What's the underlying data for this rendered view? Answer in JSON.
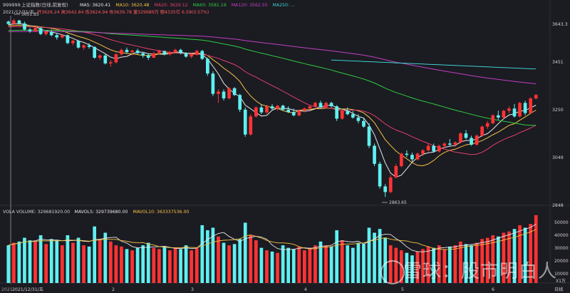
{
  "header": {
    "code": "999999",
    "name": "上证指数(日线,前复权)",
    "ma_items": [
      {
        "label": "MA5: 3620.41",
        "color": "#e8e8e8"
      },
      {
        "label": "MA10: 3620.48",
        "color": "#f5c242"
      },
      {
        "label": "MA20: 3629.12",
        "color": "#e0406a"
      },
      {
        "label": "MA60: 3581.19",
        "color": "#2ecc40"
      },
      {
        "label": "MA120: 3562.55",
        "color": "#c040c0"
      },
      {
        "label": "MA250: ...",
        "color": "#3ccfcf"
      }
    ],
    "info_date": "2021/12/31/五",
    "info_values": "开3626.24 高3642.84 低3624.94 收3639.78 量329689万 额4335亿 6.59(0.57%)"
  },
  "price_axis": {
    "labels": [
      "3643.3",
      "3451",
      "3250",
      "3049",
      "2848"
    ]
  },
  "annotations": {
    "high": "3651.85",
    "low": "2863.65"
  },
  "volume_header": {
    "items": [
      {
        "label": "VOLA VOLUME: 329681920.00",
        "color": "#cfcfcf"
      },
      {
        "label": "MAVOL5: 329739680.00",
        "color": "#e8e8e8"
      },
      {
        "label": "MAVOL10: 363337536.00",
        "color": "#f5c242"
      }
    ]
  },
  "volume_axis": {
    "labels": [
      "50000",
      "40000",
      "30000",
      "20000",
      "10000"
    ],
    "unit": "X1万"
  },
  "date_axis": {
    "labels": [
      "2021",
      "2021/12/31/五",
      "2",
      "3",
      "4",
      "5",
      "6",
      "日线"
    ]
  },
  "watermark": {
    "text": "雪球：股市明白人"
  },
  "colors": {
    "up": "#ff3333",
    "down": "#5ff0f0",
    "background": "#1b1b22",
    "ma5": "#e8e8e8",
    "ma10": "#f5c242",
    "ma20": "#e0406a",
    "ma60": "#2ecc40",
    "ma120": "#c040c0",
    "ma250": "#3ccfcf"
  },
  "chart_data": {
    "type": "candlestick",
    "price_range": [
      2820,
      3660
    ],
    "volume_range": [
      0,
      55000
    ],
    "candles": [
      [
        3640,
        3645,
        3625,
        3630,
        30000
      ],
      [
        3630,
        3651.85,
        3620,
        3645,
        32000
      ],
      [
        3645,
        3648,
        3628,
        3632,
        33000
      ],
      [
        3632,
        3640,
        3600,
        3605,
        36000
      ],
      [
        3605,
        3612,
        3590,
        3598,
        34000
      ],
      [
        3598,
        3618,
        3595,
        3612,
        33000
      ],
      [
        3612,
        3615,
        3580,
        3585,
        38000
      ],
      [
        3585,
        3600,
        3578,
        3595,
        31000
      ],
      [
        3595,
        3605,
        3575,
        3580,
        35000
      ],
      [
        3580,
        3590,
        3560,
        3570,
        34000
      ],
      [
        3570,
        3585,
        3565,
        3580,
        30000
      ],
      [
        3580,
        3583,
        3540,
        3545,
        38000
      ],
      [
        3545,
        3560,
        3535,
        3555,
        32000
      ],
      [
        3555,
        3560,
        3520,
        3525,
        36000
      ],
      [
        3525,
        3540,
        3515,
        3535,
        30000
      ],
      [
        3535,
        3545,
        3520,
        3528,
        29000
      ],
      [
        3528,
        3530,
        3475,
        3480,
        45000
      ],
      [
        3480,
        3495,
        3470,
        3490,
        34000
      ],
      [
        3490,
        3495,
        3450,
        3455,
        40000
      ],
      [
        3455,
        3470,
        3440,
        3460,
        33000
      ],
      [
        3460,
        3500,
        3455,
        3495,
        30000
      ],
      [
        3495,
        3520,
        3490,
        3515,
        29000
      ],
      [
        3515,
        3525,
        3500,
        3505,
        27000
      ],
      [
        3505,
        3515,
        3490,
        3512,
        26000
      ],
      [
        3512,
        3520,
        3495,
        3500,
        28000
      ],
      [
        3500,
        3505,
        3480,
        3490,
        30000
      ],
      [
        3490,
        3500,
        3470,
        3480,
        32000
      ],
      [
        3480,
        3505,
        3478,
        3500,
        28000
      ],
      [
        3500,
        3515,
        3495,
        3510,
        27000
      ],
      [
        3510,
        3512,
        3490,
        3495,
        29000
      ],
      [
        3495,
        3510,
        3490,
        3505,
        26000
      ],
      [
        3505,
        3520,
        3500,
        3515,
        28000
      ],
      [
        3515,
        3520,
        3495,
        3500,
        27000
      ],
      [
        3500,
        3505,
        3480,
        3485,
        30000
      ],
      [
        3485,
        3500,
        3478,
        3495,
        26000
      ],
      [
        3495,
        3515,
        3490,
        3510,
        28000
      ],
      [
        3510,
        3515,
        3470,
        3475,
        46000
      ],
      [
        3475,
        3480,
        3400,
        3410,
        42000
      ],
      [
        3410,
        3420,
        3310,
        3320,
        44000
      ],
      [
        3320,
        3340,
        3280,
        3330,
        37000
      ],
      [
        3330,
        3340,
        3290,
        3300,
        32000
      ],
      [
        3300,
        3350,
        3295,
        3345,
        30000
      ],
      [
        3345,
        3350,
        3310,
        3315,
        31000
      ],
      [
        3315,
        3320,
        3240,
        3250,
        35000
      ],
      [
        3250,
        3260,
        3130,
        3140,
        48000
      ],
      [
        3140,
        3230,
        3135,
        3220,
        38000
      ],
      [
        3220,
        3265,
        3215,
        3260,
        34000
      ],
      [
        3260,
        3275,
        3230,
        3238,
        28000
      ],
      [
        3238,
        3270,
        3232,
        3265,
        26000
      ],
      [
        3265,
        3275,
        3250,
        3255,
        25000
      ],
      [
        3255,
        3270,
        3245,
        3268,
        24000
      ],
      [
        3268,
        3272,
        3245,
        3250,
        30000
      ],
      [
        3250,
        3265,
        3235,
        3240,
        28000
      ],
      [
        3240,
        3255,
        3220,
        3225,
        27000
      ],
      [
        3225,
        3250,
        3220,
        3245,
        29000
      ],
      [
        3245,
        3260,
        3238,
        3255,
        26000
      ],
      [
        3255,
        3270,
        3250,
        3265,
        28000
      ],
      [
        3265,
        3285,
        3260,
        3280,
        30000
      ],
      [
        3280,
        3290,
        3255,
        3260,
        33000
      ],
      [
        3260,
        3285,
        3255,
        3280,
        30000
      ],
      [
        3280,
        3285,
        3260,
        3265,
        29000
      ],
      [
        3265,
        3270,
        3200,
        3210,
        42000
      ],
      [
        3210,
        3250,
        3205,
        3245,
        34000
      ],
      [
        3245,
        3260,
        3225,
        3230,
        30000
      ],
      [
        3230,
        3245,
        3210,
        3215,
        28000
      ],
      [
        3215,
        3230,
        3190,
        3200,
        32000
      ],
      [
        3200,
        3215,
        3170,
        3175,
        31000
      ],
      [
        3175,
        3190,
        3080,
        3090,
        44000
      ],
      [
        3090,
        3100,
        3000,
        3010,
        40000
      ],
      [
        3010,
        3020,
        2900,
        2910,
        43000
      ],
      [
        2910,
        2920,
        2863.65,
        2885,
        36000
      ],
      [
        2885,
        2960,
        2880,
        2950,
        30000
      ],
      [
        2950,
        3010,
        2945,
        3000,
        28000
      ],
      [
        3000,
        3060,
        2995,
        3055,
        26000
      ],
      [
        3055,
        3070,
        3040,
        3050,
        24000
      ],
      [
        3050,
        3060,
        3020,
        3030,
        22000
      ],
      [
        3030,
        3060,
        3025,
        3055,
        25000
      ],
      [
        3055,
        3075,
        3045,
        3070,
        27000
      ],
      [
        3070,
        3100,
        3065,
        3090,
        29000
      ],
      [
        3090,
        3100,
        3060,
        3065,
        28000
      ],
      [
        3065,
        3095,
        3060,
        3090,
        30000
      ],
      [
        3090,
        3105,
        3080,
        3100,
        27000
      ],
      [
        3100,
        3120,
        3090,
        3095,
        29000
      ],
      [
        3095,
        3110,
        3085,
        3105,
        30000
      ],
      [
        3105,
        3150,
        3100,
        3145,
        33000
      ],
      [
        3145,
        3160,
        3120,
        3125,
        31000
      ],
      [
        3125,
        3135,
        3090,
        3095,
        30000
      ],
      [
        3095,
        3140,
        3090,
        3135,
        32000
      ],
      [
        3135,
        3180,
        3130,
        3175,
        35000
      ],
      [
        3175,
        3200,
        3165,
        3190,
        36000
      ],
      [
        3190,
        3230,
        3185,
        3225,
        38000
      ],
      [
        3225,
        3245,
        3205,
        3215,
        37000
      ],
      [
        3215,
        3250,
        3210,
        3245,
        40000
      ],
      [
        3245,
        3265,
        3235,
        3255,
        41000
      ],
      [
        3255,
        3275,
        3215,
        3220,
        43000
      ],
      [
        3220,
        3285,
        3215,
        3280,
        46000
      ],
      [
        3280,
        3290,
        3225,
        3235,
        44000
      ],
      [
        3235,
        3305,
        3230,
        3300,
        47000
      ],
      [
        3300,
        3320,
        3295,
        3315,
        54000
      ]
    ]
  }
}
